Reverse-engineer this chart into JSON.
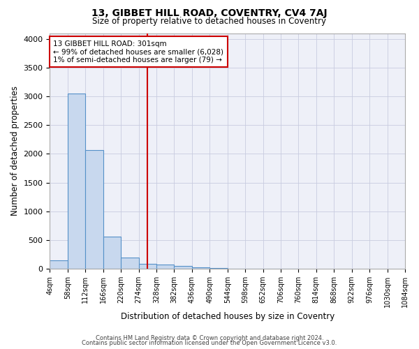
{
  "title": "13, GIBBET HILL ROAD, COVENTRY, CV4 7AJ",
  "subtitle": "Size of property relative to detached houses in Coventry",
  "xlabel": "Distribution of detached houses by size in Coventry",
  "ylabel": "Number of detached properties",
  "bin_edges": [
    4,
    58,
    112,
    166,
    220,
    274,
    328,
    382,
    436,
    490,
    544,
    598,
    652,
    706,
    760,
    814,
    868,
    922,
    976,
    1030,
    1084
  ],
  "bar_heights": [
    150,
    3050,
    2060,
    560,
    200,
    80,
    70,
    50,
    30,
    10,
    5,
    2,
    1,
    1,
    0,
    0,
    0,
    0,
    0,
    0
  ],
  "bar_color": "#c8d8ee",
  "bar_edge_color": "#5590c8",
  "property_line_x": 301,
  "property_line_color": "#cc0000",
  "annotation_text": "13 GIBBET HILL ROAD: 301sqm\n← 99% of detached houses are smaller (6,028)\n1% of semi-detached houses are larger (79) →",
  "annotation_box_color": "#cc0000",
  "annotation_facecolor": "white",
  "ylim": [
    0,
    4100
  ],
  "yticks": [
    0,
    500,
    1000,
    1500,
    2000,
    2500,
    3000,
    3500,
    4000
  ],
  "footer_line1": "Contains HM Land Registry data © Crown copyright and database right 2024.",
  "footer_line2": "Contains public sector information licensed under the Open Government Licence v3.0.",
  "bg_color": "#ffffff",
  "plot_bg_color": "#eef0f8",
  "grid_color": "#c8cce0"
}
